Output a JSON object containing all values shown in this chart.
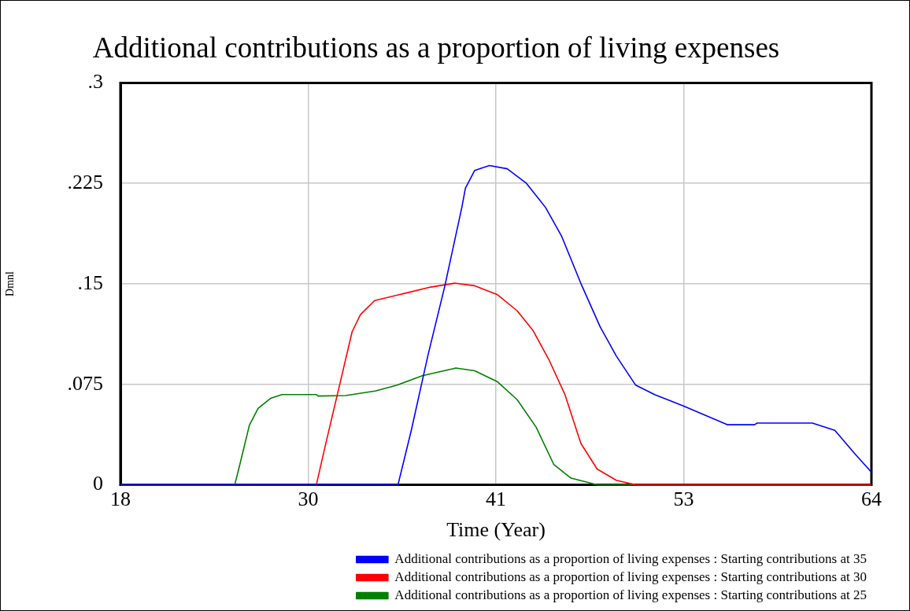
{
  "chart_data": {
    "type": "line",
    "title": "Additional contributions as a proportion of living expenses",
    "xlabel": "Time (Year)",
    "ylabel": "Dmnl",
    "xlim": [
      18,
      64
    ],
    "xticks": [
      18,
      {
        "value": 29.5,
        "label": "30"
      },
      41,
      {
        "value": 52.5,
        "label": "53"
      },
      64
    ],
    "ylim": [
      0,
      0.3
    ],
    "yticks": [
      {
        "value": 0,
        "label": "0"
      },
      {
        "value": 0.075,
        "label": ".075"
      },
      {
        "value": 0.15,
        "label": ".15"
      },
      {
        "value": 0.225,
        "label": ".225"
      },
      {
        "value": 0.3,
        "label": ".3"
      }
    ],
    "grid": true,
    "legend": "bottom",
    "marker": "none",
    "line_style": "solid",
    "series": [
      {
        "name": "Additional contributions as a proportion of living expenses : Starting contributions at 35",
        "color": "#0000ff",
        "x": [
          18,
          35.0,
          35.81,
          36.85,
          37.86,
          38.91,
          39.13,
          39.7,
          40.6,
          41.69,
          42.87,
          44.04,
          45.03,
          46.2,
          47.39,
          48.37,
          49.56,
          50.74,
          52.51,
          55.17,
          56.84,
          57.0,
          60.38,
          61.76,
          62.94,
          64.0
        ],
        "values": [
          0,
          0,
          0.0404,
          0.0974,
          0.1479,
          0.207,
          0.2214,
          0.2347,
          0.2383,
          0.2359,
          0.225,
          0.207,
          0.1854,
          0.1504,
          0.1178,
          0.0962,
          0.0744,
          0.0673,
          0.0588,
          0.0449,
          0.0449,
          0.0461,
          0.0461,
          0.0407,
          0.0238,
          0.0094
        ]
      },
      {
        "name": "Additional contributions as a proportion of living expenses : Starting contributions at 30",
        "color": "#ff0000",
        "x": [
          18,
          30.0,
          30.56,
          31.5,
          32.19,
          32.7,
          33.57,
          35.3,
          37.0,
          38.48,
          38.54,
          39.7,
          41.1,
          42.3,
          43.26,
          44.23,
          45.23,
          46.2,
          47.2,
          48.37,
          49.56,
          64
        ],
        "values": [
          0,
          0,
          0.0299,
          0.0785,
          0.1142,
          0.127,
          0.1375,
          0.1426,
          0.1476,
          0.1505,
          0.1504,
          0.1486,
          0.1419,
          0.1299,
          0.1154,
          0.0938,
          0.0673,
          0.031,
          0.0118,
          0.0034,
          0,
          0
        ]
      },
      {
        "name": "Additional contributions as a proportion of living expenses : Starting contributions at 25",
        "color": "#008000",
        "x": [
          18,
          25.0,
          25.31,
          25.9,
          26.43,
          27.2,
          27.9,
          30.0,
          30.1,
          31.8,
          33.6,
          34.95,
          36.5,
          38.4,
          38.54,
          39.7,
          41.1,
          42.3,
          43.46,
          44.54,
          45.6,
          47.2,
          64
        ],
        "values": [
          0,
          0,
          0.015,
          0.0446,
          0.057,
          0.0646,
          0.0674,
          0.0674,
          0.0663,
          0.0667,
          0.07,
          0.0745,
          0.0815,
          0.0868,
          0.0872,
          0.0852,
          0.0769,
          0.0636,
          0.0431,
          0.0153,
          0.005,
          0,
          0
        ]
      }
    ]
  }
}
